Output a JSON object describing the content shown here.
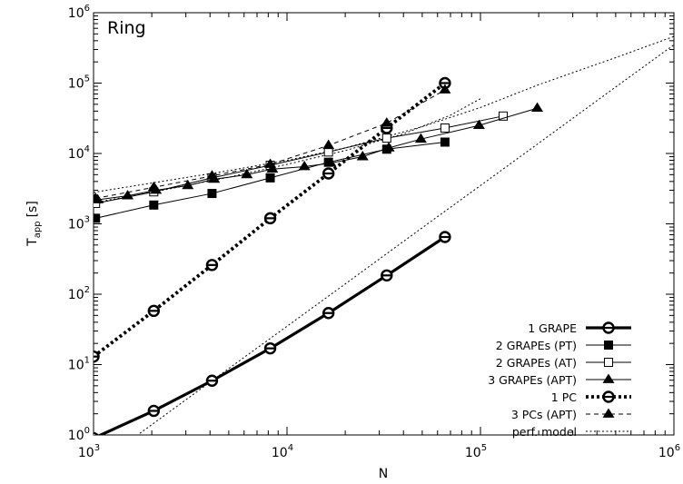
{
  "chart_data": {
    "type": "line",
    "panel_label": "Ring",
    "xlabel": "N",
    "ylabel_main": "T",
    "ylabel_sub": "app",
    "ylabel_unit": "[s]",
    "xscale": "log",
    "yscale": "log",
    "xlim": [
      1000,
      1000000
    ],
    "ylim": [
      1,
      1000000
    ],
    "x_ticks": [
      {
        "value": 1000,
        "base": "10",
        "exp": "3"
      },
      {
        "value": 10000,
        "base": "10",
        "exp": "4"
      },
      {
        "value": 100000,
        "base": "10",
        "exp": "5"
      },
      {
        "value": 1000000,
        "base": "10",
        "exp": "6"
      }
    ],
    "y_ticks": [
      {
        "value": 1,
        "base": "10",
        "exp": "0"
      },
      {
        "value": 10,
        "base": "10",
        "exp": "1"
      },
      {
        "value": 100,
        "base": "10",
        "exp": "2"
      },
      {
        "value": 1000,
        "base": "10",
        "exp": "3"
      },
      {
        "value": 10000,
        "base": "10",
        "exp": "4"
      },
      {
        "value": 100000,
        "base": "10",
        "exp": "5"
      },
      {
        "value": 1000000,
        "base": "10",
        "exp": "6"
      }
    ],
    "grid": false,
    "legend_position": "bottom-right",
    "series": [
      {
        "name": "1 GRAPE",
        "marker": "circle-open",
        "line": "solid",
        "width": 3.2,
        "x": [
          1000,
          2048,
          4096,
          8192,
          16384,
          32768,
          65536
        ],
        "y": [
          0.9,
          2.2,
          5.9,
          17,
          54,
          185,
          650
        ]
      },
      {
        "name": "2 GRAPEs (PT)",
        "marker": "square-filled",
        "line": "solid",
        "width": 1,
        "x": [
          1024,
          2048,
          4096,
          8192,
          16384,
          32768,
          65536
        ],
        "y": [
          1200,
          1850,
          2700,
          4500,
          7500,
          11500,
          14500
        ]
      },
      {
        "name": "2 GRAPEs (AT)",
        "marker": "square-open",
        "line": "solid",
        "width": 1,
        "x": [
          1024,
          2048,
          4096,
          8192,
          16384,
          32768,
          65536,
          131072
        ],
        "y": [
          1950,
          2850,
          4500,
          6800,
          10500,
          16500,
          23000,
          34000
        ]
      },
      {
        "name": "3 GRAPEs (APT)",
        "marker": "triangle-filled",
        "line": "solid",
        "width": 1,
        "x": [
          1050,
          1500,
          2100,
          3070,
          4200,
          6200,
          8400,
          12300,
          16800,
          24600,
          33600,
          49200,
          98300,
          196600
        ],
        "y": [
          2200,
          2500,
          3000,
          3500,
          4300,
          5000,
          6000,
          6500,
          7300,
          9000,
          12000,
          16000,
          25000,
          44000
        ]
      },
      {
        "name": "1 PC",
        "marker": "circle-open",
        "line": "dotted",
        "width": 3.8,
        "x": [
          1000,
          2048,
          4096,
          8192,
          16384,
          32768,
          65536
        ],
        "y": [
          13,
          58,
          260,
          1200,
          5200,
          23000,
          100000
        ]
      },
      {
        "name": "3 PCs (APT)",
        "marker": "triangle-filled",
        "line": "dashed",
        "width": 1,
        "x": [
          1024,
          2048,
          4096,
          8192,
          16384,
          32768,
          65536
        ],
        "y": [
          2300,
          3300,
          4800,
          7000,
          13000,
          27000,
          80000
        ]
      },
      {
        "name": "perf. model",
        "marker": "none",
        "line": "dotted-thin",
        "width": 1,
        "curves": [
          {
            "x": [
              1000,
              2000,
              5000,
              10000,
              20000,
              50000,
              100000,
              200000,
              500000,
              1000000
            ],
            "y": [
              0.35,
              1.4,
              8.8,
              35,
              140,
              880,
              3500,
              14000,
              88000,
              350000
            ]
          },
          {
            "x": [
              1000,
              2000,
              5000,
              10000,
              20000,
              50000,
              100000,
              200000,
              500000,
              1000000
            ],
            "y": [
              2800,
              3800,
              5700,
              8000,
              12000,
              24000,
              45000,
              95000,
              230000,
              460000
            ]
          },
          {
            "x": [
              1000,
              2000,
              5000,
              10000,
              20000,
              40000,
              70000,
              100000
            ],
            "y": [
              2000,
              2800,
              4600,
              7000,
              11000,
              19000,
              35000,
              60000
            ]
          }
        ]
      }
    ]
  }
}
